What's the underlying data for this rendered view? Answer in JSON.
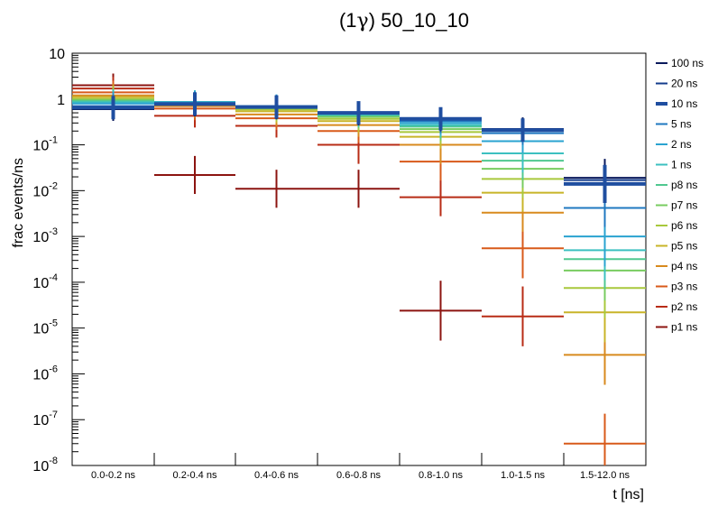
{
  "chart_data": {
    "type": "histogram-errorbars",
    "title_prefix": "(1",
    "title_symbol": "γ",
    "title_suffix": ") 50_10_10",
    "xlabel": "t [ns]",
    "ylabel": "frac events/ns",
    "yscale": "log",
    "ylim": [
      1e-08,
      10
    ],
    "categories": [
      "0.0-0.2 ns",
      "0.2-0.4 ns",
      "0.4-0.6 ns",
      "0.6-0.8 ns",
      "0.8-1.0 ns",
      "1.0-1.5 ns",
      "1.5-12.0 ns"
    ],
    "y_ticks": [
      {
        "base": "10",
        "exp": "-8",
        "value": 1e-08
      },
      {
        "base": "10",
        "exp": "-7",
        "value": 1e-07
      },
      {
        "base": "10",
        "exp": "-6",
        "value": 1e-06
      },
      {
        "base": "10",
        "exp": "-5",
        "value": 1e-05
      },
      {
        "base": "10",
        "exp": "-4",
        "value": 0.0001
      },
      {
        "base": "10",
        "exp": "-3",
        "value": 0.001
      },
      {
        "base": "10",
        "exp": "-2",
        "value": 0.01
      },
      {
        "base": "10",
        "exp": "-1",
        "value": 0.1
      },
      {
        "base": "1",
        "exp": "",
        "value": 1
      },
      {
        "base": "10",
        "exp": "",
        "value": 10
      }
    ],
    "legend_position": "right",
    "series": [
      {
        "name": "100 ns",
        "color": "#0a1a5c",
        "values": [
          0.6,
          0.75,
          0.65,
          0.48,
          0.36,
          0.22,
          0.019
        ]
      },
      {
        "name": "20 ns",
        "color": "#143c8c",
        "values": [
          0.62,
          0.77,
          0.66,
          0.49,
          0.36,
          0.22,
          0.017
        ]
      },
      {
        "name": "10 ns",
        "color": "#1f4ea0",
        "bold": true,
        "values": [
          0.65,
          0.78,
          0.67,
          0.5,
          0.37,
          0.21,
          0.014
        ]
      },
      {
        "name": "5 ns",
        "color": "#1f78c0",
        "values": [
          0.7,
          0.8,
          0.68,
          0.49,
          0.33,
          0.18,
          0.0042
        ]
      },
      {
        "name": "2 ns",
        "color": "#2aa3d0",
        "values": [
          0.8,
          0.85,
          0.7,
          0.48,
          0.3,
          0.12,
          0.001
        ]
      },
      {
        "name": "1 ns",
        "color": "#3cc0c0",
        "values": [
          0.85,
          0.86,
          0.68,
          0.46,
          0.27,
          0.065,
          0.0005
        ]
      },
      {
        "name": "p8 ns",
        "color": "#50c890",
        "values": [
          0.9,
          0.86,
          0.66,
          0.44,
          0.25,
          0.045,
          0.00032
        ]
      },
      {
        "name": "p7 ns",
        "color": "#78cc60",
        "values": [
          0.95,
          0.85,
          0.63,
          0.41,
          0.22,
          0.03,
          0.00018
        ]
      },
      {
        "name": "p6 ns",
        "color": "#a8c83c",
        "values": [
          1.0,
          0.83,
          0.59,
          0.37,
          0.19,
          0.018,
          7.5e-05
        ]
      },
      {
        "name": "p5 ns",
        "color": "#c8b428",
        "values": [
          1.1,
          0.8,
          0.54,
          0.33,
          0.15,
          0.009,
          2.2e-05
        ]
      },
      {
        "name": "p4 ns",
        "color": "#d88a1e",
        "values": [
          1.2,
          0.7,
          0.46,
          0.27,
          0.1,
          0.0033,
          2.6e-06
        ]
      },
      {
        "name": "p3 ns",
        "color": "#d85a1a",
        "values": [
          1.4,
          0.62,
          0.38,
          0.2,
          0.043,
          0.00055,
          3e-08
        ]
      },
      {
        "name": "p2 ns",
        "color": "#b82c16",
        "values": [
          1.7,
          0.43,
          0.26,
          0.1,
          0.0072,
          1.8e-05,
          null
        ]
      },
      {
        "name": "p1 ns",
        "color": "#8c1410",
        "values": [
          2.0,
          0.022,
          0.011,
          0.011,
          2.4e-05,
          null,
          null
        ]
      }
    ]
  }
}
